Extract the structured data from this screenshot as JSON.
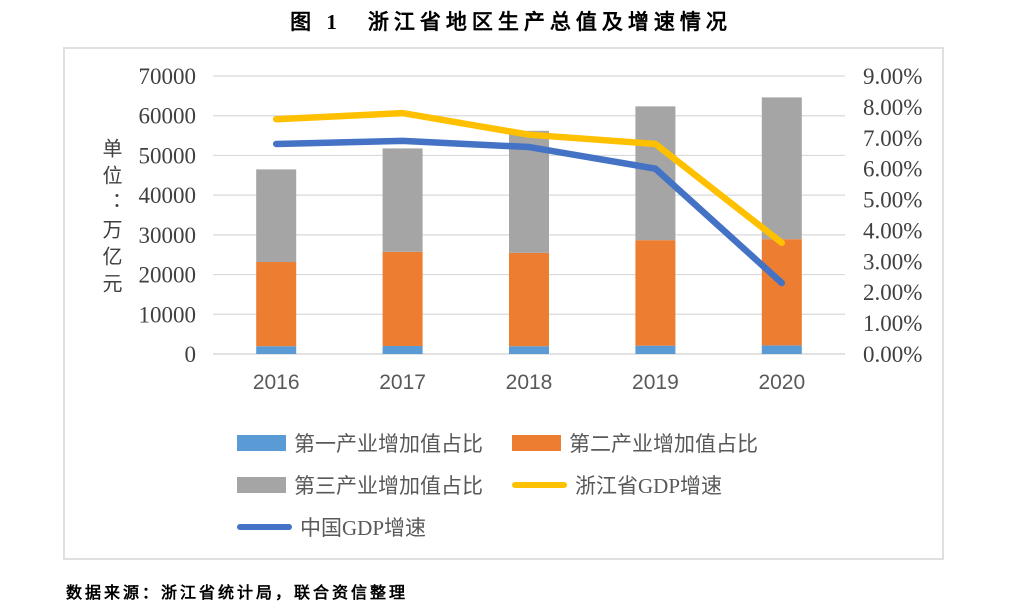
{
  "page": {
    "title": "图 1　浙江省地区生产总值及增速情况",
    "source_note": "数据来源：浙江省统计局，联合资信整理"
  },
  "chart_data": {
    "type": "combo-stacked-bar-line",
    "title": "图 1　浙江省地区生产总值及增速情况",
    "unit_label": "单位：万亿元",
    "categories": [
      "2016",
      "2017",
      "2018",
      "2019",
      "2020"
    ],
    "bar_series": [
      {
        "name": "第一产业增加值占比",
        "color": "#5B9BD5",
        "values": [
          1966,
          2017,
          1967,
          2097,
          2169
        ]
      },
      {
        "name": "第二产业增加值占比",
        "color": "#ED7D31",
        "values": [
          21195,
          23708,
          23506,
          26567,
          26743
        ]
      },
      {
        "name": "第三产业增加值占比",
        "color": "#A5A5A5",
        "values": [
          23324,
          26043,
          30724,
          33688,
          35701
        ]
      }
    ],
    "line_series": [
      {
        "name": "浙江省GDP增速",
        "color": "#FFC000",
        "values": [
          7.6,
          7.8,
          7.1,
          6.8,
          3.6
        ]
      },
      {
        "name": "中国GDP增速",
        "color": "#4472C4",
        "values": [
          6.8,
          6.9,
          6.7,
          6.0,
          2.3
        ]
      }
    ],
    "left_axis": {
      "min": 0,
      "max": 70000,
      "step": 10000,
      "tick_labels": [
        "0",
        "10000",
        "20000",
        "30000",
        "40000",
        "50000",
        "60000",
        "70000"
      ]
    },
    "right_axis": {
      "min": 0,
      "max": 9,
      "step": 1,
      "tick_labels": [
        "0.00%",
        "1.00%",
        "2.00%",
        "3.00%",
        "4.00%",
        "5.00%",
        "6.00%",
        "7.00%",
        "8.00%",
        "9.00%"
      ]
    },
    "grid": true,
    "gridline_color": "#D9D9D9",
    "legend_position": "bottom-left",
    "legend": {
      "rows": [
        [
          0,
          1
        ],
        [
          2,
          3
        ],
        [
          4
        ]
      ],
      "items": [
        {
          "label": "第一产业增加值占比",
          "swatch": "bar",
          "color": "#5B9BD5"
        },
        {
          "label": "第二产业增加值占比",
          "swatch": "bar",
          "color": "#ED7D31"
        },
        {
          "label": "第三产业增加值占比",
          "swatch": "bar",
          "color": "#A5A5A5"
        },
        {
          "label": "浙江省GDP增速",
          "swatch": "line",
          "color": "#FFC000"
        },
        {
          "label": "中国GDP增速",
          "swatch": "line",
          "color": "#4472C4"
        }
      ]
    }
  }
}
